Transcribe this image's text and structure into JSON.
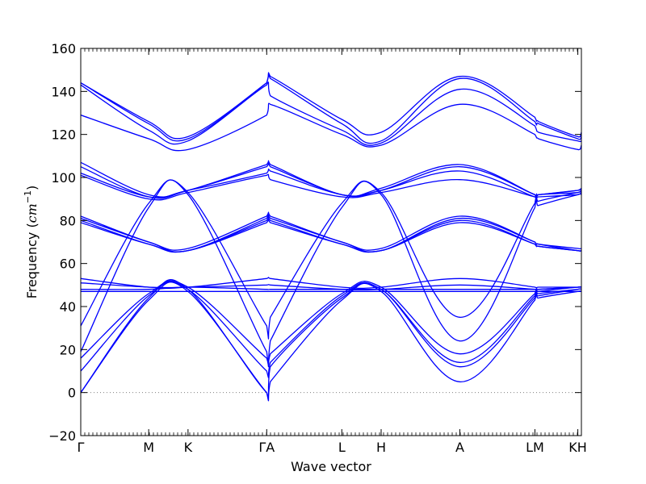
{
  "chart_data": {
    "type": "line",
    "xlabel": "Wave vector",
    "ylabel": "Frequency (cm⁻¹)",
    "ylabel_parts": {
      "text": "Frequency (",
      "unit_base": "cm",
      "unit_exp": "−1",
      "close": ")"
    },
    "ylim": [
      -20,
      160
    ],
    "yticks": [
      -20,
      0,
      20,
      40,
      60,
      80,
      100,
      120,
      140,
      160
    ],
    "xlim": [
      0,
      7.0
    ],
    "xticks": [
      {
        "x": 0.0,
        "label": "Γ"
      },
      {
        "x": 0.95,
        "label": "M"
      },
      {
        "x": 1.5,
        "label": "K"
      },
      {
        "x": 2.6,
        "label": "ΓA"
      },
      {
        "x": 3.65,
        "label": "L"
      },
      {
        "x": 4.2,
        "label": "H"
      },
      {
        "x": 5.3,
        "label": "A"
      },
      {
        "x": 6.35,
        "label": "LM"
      },
      {
        "x": 6.95,
        "label": "KH"
      }
    ],
    "zero_line": {
      "y": 0,
      "style": "dotted",
      "color": "#808080"
    },
    "grid": false,
    "series_color": "#0000ff",
    "series": [
      {
        "x": [
          0,
          0.95,
          1.5,
          2.6,
          2.65,
          3.65,
          4.2,
          5.3,
          6.35,
          6.4,
          6.95,
          7.0
        ],
        "values": [
          0,
          43,
          47,
          0,
          5,
          43,
          47,
          5,
          43,
          44,
          47,
          47
        ]
      },
      {
        "x": [
          0,
          0.95,
          1.5,
          2.6,
          2.65,
          3.65,
          4.2,
          5.3,
          6.35,
          6.4,
          6.95,
          7.0
        ],
        "values": [
          0,
          44,
          48,
          0,
          12,
          44,
          48,
          12,
          44,
          45,
          48,
          48
        ]
      },
      {
        "x": [
          0,
          0.95,
          1.5,
          2.6,
          2.65,
          3.65,
          4.2,
          5.3,
          6.35,
          6.4,
          6.95,
          7.0
        ],
        "values": [
          10,
          45,
          48,
          10,
          14,
          45,
          48,
          14,
          45,
          46,
          48,
          48
        ]
      },
      {
        "x": [
          0,
          0.95,
          1.5,
          2.6,
          2.65,
          3.65,
          4.2,
          5.3,
          6.35,
          6.4,
          6.95,
          7.0
        ],
        "values": [
          16,
          46,
          49,
          16,
          18,
          46,
          49,
          18,
          46,
          47,
          49,
          49
        ]
      },
      {
        "x": [
          0,
          0.95,
          1.5,
          2.6,
          2.65,
          3.65,
          4.2,
          5.3,
          6.35,
          6.4,
          6.95,
          7.0
        ],
        "values": [
          19,
          86,
          92,
          19,
          24,
          86,
          92,
          24,
          86,
          87,
          92,
          92
        ]
      },
      {
        "x": [
          0,
          0.95,
          1.5,
          2.6,
          2.65,
          3.65,
          4.2,
          5.3,
          6.35,
          6.4,
          6.95,
          7.0
        ],
        "values": [
          31,
          88,
          93,
          31,
          35,
          88,
          93,
          35,
          88,
          89,
          93,
          93
        ]
      },
      {
        "x": [
          0,
          0.95,
          1.5,
          2.6,
          2.65,
          3.65,
          4.2,
          5.3,
          6.35,
          6.4,
          6.95,
          7.0
        ],
        "values": [
          47,
          47,
          47,
          47,
          47,
          47,
          47,
          47,
          47,
          47,
          47,
          47
        ]
      },
      {
        "x": [
          0,
          0.95,
          1.5,
          2.6,
          2.65,
          3.65,
          4.2,
          5.3,
          6.35,
          6.4,
          6.95,
          7.0
        ],
        "values": [
          48,
          48,
          49,
          48,
          48,
          48,
          48,
          48,
          48,
          48,
          49,
          49
        ]
      },
      {
        "x": [
          0,
          0.95,
          1.5,
          2.6,
          2.65,
          3.65,
          4.2,
          5.3,
          6.35,
          6.4,
          6.95,
          7.0
        ],
        "values": [
          51,
          49,
          49,
          50,
          50,
          48,
          48,
          50,
          48,
          48,
          49,
          49
        ]
      },
      {
        "x": [
          0,
          0.95,
          1.5,
          2.6,
          2.65,
          3.65,
          4.2,
          5.3,
          6.35,
          6.4,
          6.95,
          7.0
        ],
        "values": [
          53,
          49,
          49,
          53,
          53,
          49,
          49,
          53,
          49,
          49,
          49,
          49
        ]
      },
      {
        "x": [
          0,
          0.95,
          1.5,
          2.6,
          2.65,
          3.65,
          4.2,
          5.3,
          6.35,
          6.4,
          6.95,
          7.0
        ],
        "values": [
          79,
          69,
          66,
          79,
          79,
          69,
          66,
          79,
          69,
          68,
          66,
          66
        ]
      },
      {
        "x": [
          0,
          0.95,
          1.5,
          2.6,
          2.65,
          3.65,
          4.2,
          5.3,
          6.35,
          6.4,
          6.95,
          7.0
        ],
        "values": [
          80,
          69,
          66,
          80,
          80,
          69,
          66,
          80,
          69,
          68,
          66,
          66
        ]
      },
      {
        "x": [
          0,
          0.95,
          1.5,
          2.6,
          2.65,
          3.65,
          4.2,
          5.3,
          6.35,
          6.4,
          6.95,
          7.0
        ],
        "values": [
          81,
          70,
          66,
          81,
          81,
          70,
          66,
          81,
          70,
          69,
          66,
          66
        ]
      },
      {
        "x": [
          0,
          0.95,
          1.5,
          2.6,
          2.65,
          3.65,
          4.2,
          5.3,
          6.35,
          6.4,
          6.95,
          7.0
        ],
        "values": [
          82,
          70,
          67,
          82,
          82,
          70,
          67,
          82,
          70,
          69,
          67,
          67
        ]
      },
      {
        "x": [
          0,
          0.95,
          1.5,
          2.6,
          2.65,
          3.65,
          4.2,
          5.3,
          6.35,
          6.4,
          6.95,
          7.0
        ],
        "values": [
          101,
          90,
          93,
          101,
          99,
          91,
          93,
          99,
          91,
          91,
          92,
          93
        ]
      },
      {
        "x": [
          0,
          0.95,
          1.5,
          2.6,
          2.65,
          3.65,
          4.2,
          5.3,
          6.35,
          6.4,
          6.95,
          7.0
        ],
        "values": [
          102,
          91,
          94,
          102,
          103,
          92,
          94,
          103,
          91,
          92,
          93,
          94
        ]
      },
      {
        "x": [
          0,
          0.95,
          1.5,
          2.6,
          2.65,
          3.65,
          4.2,
          5.3,
          6.35,
          6.4,
          6.95,
          7.0
        ],
        "values": [
          105,
          91,
          94,
          105,
          105,
          92,
          94,
          105,
          92,
          92,
          94,
          94
        ]
      },
      {
        "x": [
          0,
          0.95,
          1.5,
          2.6,
          2.65,
          3.65,
          4.2,
          5.3,
          6.35,
          6.4,
          6.95,
          7.0
        ],
        "values": [
          107,
          92,
          94,
          106,
          106,
          92,
          95,
          106,
          92,
          92,
          94,
          95
        ]
      },
      {
        "x": [
          0,
          0.95,
          1.5,
          2.6,
          2.65,
          3.65,
          4.2,
          5.3,
          6.35,
          6.4,
          6.95,
          7.0
        ],
        "values": [
          129,
          118,
          113,
          129,
          134,
          120,
          115,
          134,
          120,
          118,
          113,
          115
        ]
      },
      {
        "x": [
          0,
          0.95,
          1.5,
          2.6,
          2.65,
          3.65,
          4.2,
          5.3,
          6.35,
          6.4,
          6.95,
          7.0
        ],
        "values": [
          143,
          122,
          117,
          143,
          138,
          122,
          116,
          141,
          124,
          121,
          117,
          117
        ]
      },
      {
        "x": [
          0,
          0.95,
          1.5,
          2.6,
          2.65,
          3.65,
          4.2,
          5.3,
          6.35,
          6.4,
          6.95,
          7.0
        ],
        "values": [
          144,
          125,
          118,
          144,
          146,
          125,
          117,
          146,
          126,
          125,
          118,
          119
        ]
      },
      {
        "x": [
          0,
          0.95,
          1.5,
          2.6,
          2.65,
          3.65,
          4.2,
          5.3,
          6.35,
          6.4,
          6.95,
          7.0
        ],
        "values": [
          144,
          126,
          119,
          144,
          147,
          127,
          121,
          147,
          128,
          126,
          119,
          121
        ]
      }
    ]
  }
}
